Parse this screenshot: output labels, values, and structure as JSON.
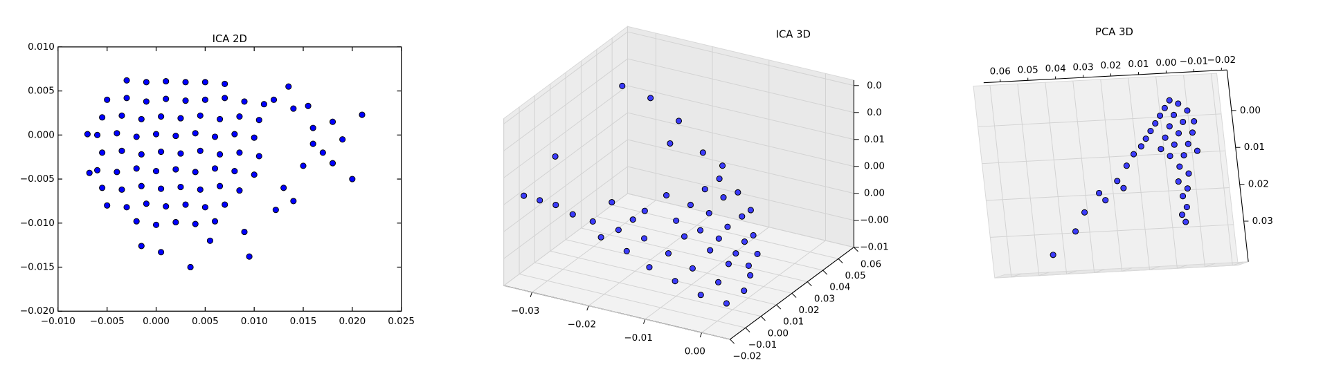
{
  "chart_data": [
    {
      "type": "scatter",
      "title": "ICA 2D",
      "color": "#0000ff",
      "edgecolor": "#000000",
      "xlim": [
        -0.01,
        0.025
      ],
      "ylim": [
        -0.02,
        0.01
      ],
      "xticks": [
        {
          "value": -0.01,
          "label": "−0.010"
        },
        {
          "value": -0.005,
          "label": "−0.005"
        },
        {
          "value": 0,
          "label": "0.000"
        },
        0.005,
        {
          "value": 0.01,
          "label": "0.010"
        },
        0.015,
        {
          "value": 0.02,
          "label": "0.020"
        },
        0.025
      ],
      "yticks": [
        {
          "value": -0.02,
          "label": "−0.020"
        },
        {
          "value": -0.015,
          "label": "−0.015"
        },
        {
          "value": -0.01,
          "label": "−0.010"
        },
        {
          "value": -0.005,
          "label": "−0.005"
        },
        {
          "value": 0,
          "label": "0.000"
        },
        0.005,
        {
          "value": 0.01,
          "label": "0.010"
        }
      ],
      "x": [
        -0.003,
        -0.001,
        0.001,
        0.003,
        0.005,
        0.007,
        -0.005,
        -0.003,
        -0.001,
        0.001,
        0.003,
        0.005,
        0.007,
        0.009,
        0.011,
        -0.0055,
        -0.0035,
        -0.0015,
        0.0005,
        0.0025,
        0.0045,
        0.0065,
        0.0085,
        0.0105,
        -0.006,
        -0.004,
        -0.002,
        0,
        0.002,
        0.004,
        0.006,
        0.008,
        0.01,
        -0.0055,
        -0.0035,
        -0.0015,
        0.0005,
        0.0025,
        0.0045,
        0.0065,
        0.0085,
        0.0105,
        -0.006,
        -0.004,
        -0.002,
        0,
        0.002,
        0.004,
        0.006,
        0.008,
        0.01,
        -0.0055,
        -0.0035,
        -0.0015,
        0.0005,
        0.0025,
        0.0045,
        0.0065,
        0.0085,
        -0.005,
        -0.003,
        -0.001,
        0.001,
        0.003,
        0.005,
        0.007,
        -0.002,
        0,
        0.002,
        0.004,
        0.006,
        0.021,
        0.018,
        0.016,
        0.019,
        0.017,
        0.02,
        0.015,
        0.013,
        0.014,
        0.012,
        0.014,
        0.016,
        -0.007,
        -0.0068,
        0.0035,
        0.0095,
        0.0005,
        -0.0015,
        0.0055,
        0.009,
        0.0122,
        0.018,
        0.0135,
        0.0155
      ],
      "y": [
        0.0062,
        0.006,
        0.0061,
        0.006,
        0.006,
        0.0058,
        0.004,
        0.0042,
        0.0038,
        0.0041,
        0.0039,
        0.004,
        0.0042,
        0.0038,
        0.0035,
        0.002,
        0.0022,
        0.0018,
        0.0021,
        0.0019,
        0.0022,
        0.0018,
        0.0021,
        0.0017,
        0,
        0.0002,
        -0.0002,
        0.0001,
        -0.0001,
        0.0002,
        -0.0002,
        0.0001,
        -0.0003,
        -0.002,
        -0.0018,
        -0.0022,
        -0.0019,
        -0.0021,
        -0.0018,
        -0.0022,
        -0.002,
        -0.0024,
        -0.004,
        -0.0042,
        -0.0038,
        -0.0041,
        -0.0039,
        -0.0042,
        -0.0038,
        -0.0041,
        -0.0045,
        -0.006,
        -0.0062,
        -0.0058,
        -0.0061,
        -0.0059,
        -0.0062,
        -0.0058,
        -0.0063,
        -0.008,
        -0.0082,
        -0.0078,
        -0.0081,
        -0.0079,
        -0.0082,
        -0.0079,
        -0.0098,
        -0.0102,
        -0.0099,
        -0.0101,
        -0.0098,
        0.0023,
        0.0015,
        0.0008,
        -0.0005,
        -0.002,
        -0.005,
        -0.0035,
        -0.006,
        -0.0075,
        0.004,
        0.003,
        -0.001,
        0.0001,
        -0.0043,
        -0.015,
        -0.0138,
        -0.0133,
        -0.0126,
        -0.012,
        -0.011,
        -0.0085,
        -0.0032,
        0.0055,
        0.0033
      ]
    },
    {
      "type": "scatter3d",
      "title": "ICA 3D",
      "color": "#0000ff",
      "edgecolor": "#000000",
      "grid": true,
      "xlim": [
        -0.035,
        0.005
      ],
      "ylim": [
        -0.02,
        0.06
      ],
      "zlim": [
        -0.01,
        0.021
      ],
      "xticks": [
        {
          "value": -0.03,
          "label": "−0.03"
        },
        {
          "value": -0.02,
          "label": "−0.02"
        },
        {
          "value": -0.01,
          "label": "−0.01"
        },
        {
          "value": 0,
          "label": "0.00"
        }
      ],
      "yticks": [
        {
          "value": -0.02,
          "label": "−0.02"
        },
        {
          "value": -0.01,
          "label": "−0.01"
        },
        {
          "value": 0,
          "label": "0.00"
        },
        0.01,
        0.02,
        0.03,
        0.04,
        0.05,
        0.06
      ],
      "zticks": [
        {
          "value": -0.01,
          "label": "−0.01"
        },
        {
          "value": -0.005,
          "label": "−0.00"
        },
        {
          "value": 0,
          "label": "0.00"
        },
        {
          "value": 0.005,
          "label": "0.00"
        },
        0.01,
        {
          "value": 0.015,
          "label": "0.0"
        },
        {
          "value": 0.02,
          "label": "0.0"
        }
      ],
      "x": [
        -0.025,
        -0.022,
        -0.02,
        -0.018,
        -0.016,
        -0.014,
        -0.012,
        -0.01,
        -0.008,
        -0.006,
        -0.004,
        -0.002,
        0,
        0.002,
        -0.02,
        -0.015,
        -0.01,
        -0.006,
        -0.003,
        0,
        0.002,
        -0.012,
        -0.008,
        -0.005,
        -0.002,
        0.001,
        -0.006,
        -0.003,
        0,
        0.002,
        -0.004,
        -0.001,
        0.001,
        0.003,
        0.002,
        -0.016,
        -0.008,
        -0.004,
        -0.001,
        -0.03,
        -0.028,
        -0.032,
        -0.025,
        -0.02,
        -0.015,
        -0.016,
        -0.03,
        -0.008,
        -0.004
      ],
      "y": [
        -0.012,
        -0.01,
        -0.012,
        -0.008,
        -0.01,
        -0.006,
        -0.01,
        -0.005,
        -0.008,
        -0.004,
        -0.006,
        -0.002,
        -0.004,
        0,
        -0.005,
        -0.002,
        0,
        0.001,
        0.002,
        0.002,
        0.003,
        0.001,
        0.002,
        0.003,
        0.004,
        0.004,
        0.004,
        0.005,
        0.006,
        0.006,
        0.006,
        0.007,
        0.008,
        0.005,
        0.004,
        -0.006,
        -0.002,
        0,
        0.001,
        -0.015,
        -0.012,
        -0.018,
        0.02,
        0.02,
        0.02,
        0.018,
        -0.005,
        0.01,
        0.008
      ],
      "z": [
        0.004,
        0.003,
        0.001,
        0.002,
        -0.001,
        0.001,
        -0.003,
        -0.001,
        -0.005,
        -0.003,
        -0.007,
        -0.005,
        -0.008,
        -0.006,
        0.006,
        0.005,
        0.004,
        0.003,
        0.002,
        0,
        -0.002,
        0.008,
        0.007,
        0.006,
        0.004,
        0.002,
        0.01,
        0.009,
        0.006,
        0.003,
        0.012,
        0.01,
        0.007,
        0,
        -0.004,
        0.004,
        0.002,
        0,
        -0.002,
        0.006,
        0.005,
        0.007,
        0.021,
        0.02,
        0.017,
        0.013,
        0.012,
        0.015,
        0.014
      ]
    },
    {
      "type": "scatter3d",
      "title": "PCA 3D",
      "color": "#0000ff",
      "edgecolor": "#000000",
      "grid": true,
      "xlim": [
        -0.022,
        0.066
      ],
      "ylim": [
        -0.02,
        0.02
      ],
      "zlim": [
        -0.011,
        0.041
      ],
      "xticks": [
        0.06,
        0.05,
        0.04,
        0.03,
        0.02,
        0.01,
        {
          "value": 0,
          "label": "0.00"
        },
        {
          "value": -0.01,
          "label": "−0.01"
        },
        {
          "value": -0.02,
          "label": "−0.02"
        }
      ],
      "zticks": [
        {
          "value": 0,
          "label": "0.00"
        },
        0.01,
        0.02,
        0.03
      ],
      "x": [
        -0.002,
        -0.005,
        0,
        -0.008,
        0.002,
        -0.003,
        -0.01,
        0.004,
        -0.006,
        -0.001,
        0.006,
        -0.009,
        -0.004,
        0.001,
        0.008,
        -0.007,
        -0.002,
        0.003,
        0.01,
        -0.01,
        -0.005,
        0,
        -0.003,
        -0.006,
        -0.002,
        -0.005,
        -0.003,
        -0.004,
        -0.002,
        -0.003,
        0.013,
        0.016,
        0.02,
        0.025,
        0.027,
        0.018,
        0.033,
        0.037,
        0.046
      ],
      "y": [
        0,
        0,
        0,
        0,
        0,
        0,
        0,
        0,
        0,
        0,
        0,
        0,
        0,
        0,
        0,
        0,
        0,
        0,
        0,
        0,
        0,
        0,
        0,
        0,
        0,
        0,
        0,
        0,
        0,
        0,
        0,
        0,
        0,
        0,
        0,
        0,
        0,
        0,
        0
      ],
      "z": [
        -0.004,
        -0.003,
        -0.002,
        -0.001,
        0,
        0,
        0.002,
        0.002,
        0.002,
        0.003,
        0.004,
        0.005,
        0.005,
        0.006,
        0.006,
        0.008,
        0.008,
        0.009,
        0.008,
        0.01,
        0.011,
        0.011,
        0.014,
        0.016,
        0.018,
        0.02,
        0.022,
        0.025,
        0.027,
        0.029,
        0.01,
        0.013,
        0.017,
        0.022,
        0.02,
        0.019,
        0.025,
        0.03,
        0.036
      ]
    }
  ]
}
